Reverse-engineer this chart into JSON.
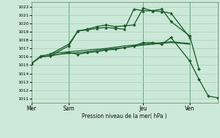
{
  "title": "Pression niveau de la mer( hPa )",
  "ylim": [
    1010.5,
    1022.5
  ],
  "y_ticks": [
    1011,
    1012,
    1013,
    1014,
    1015,
    1016,
    1017,
    1018,
    1019,
    1020,
    1021,
    1022
  ],
  "background_color": "#cce8d8",
  "grid_color": "#99ccaa",
  "line_color": "#1a5c2a",
  "day_labels": [
    "Mer",
    "Sam",
    "Jeu",
    "Ven"
  ],
  "day_positions": [
    0,
    4,
    12,
    17
  ],
  "xlim": [
    0,
    20
  ],
  "lines": [
    {
      "x": [
        0,
        1,
        2,
        4,
        5,
        6,
        7,
        8,
        9,
        10,
        11,
        12,
        13,
        14,
        15,
        17,
        18
      ],
      "y": [
        1015.2,
        1016.0,
        1016.1,
        1017.3,
        1019.1,
        1019.3,
        1019.6,
        1019.8,
        1019.6,
        1019.7,
        1019.8,
        1021.8,
        1021.5,
        1021.7,
        1020.2,
        1018.5,
        1014.5
      ],
      "marker": "D",
      "markersize": 2.0,
      "linewidth": 1.0
    },
    {
      "x": [
        0,
        1,
        2,
        4,
        5,
        6,
        7,
        8,
        9,
        10,
        11,
        12,
        13,
        14,
        15,
        17,
        18,
        19,
        20
      ],
      "y": [
        1015.2,
        1016.0,
        1016.1,
        1016.5,
        1016.3,
        1016.5,
        1016.6,
        1016.8,
        1016.9,
        1017.1,
        1017.3,
        1017.7,
        1017.7,
        1017.5,
        1018.3,
        1015.5,
        1013.3,
        1011.3,
        1011.1
      ],
      "marker": "D",
      "markersize": 2.0,
      "linewidth": 1.0
    },
    {
      "x": [
        2,
        4,
        6,
        8,
        10,
        12,
        14,
        15,
        17
      ],
      "y": [
        1016.2,
        1016.4,
        1016.6,
        1016.9,
        1017.1,
        1017.4,
        1017.6,
        1017.7,
        1017.5
      ],
      "marker": null,
      "markersize": 0,
      "linewidth": 0.9
    },
    {
      "x": [
        2,
        4,
        6,
        8,
        10,
        12,
        14,
        15,
        17
      ],
      "y": [
        1016.4,
        1016.6,
        1016.8,
        1017.0,
        1017.3,
        1017.5,
        1017.7,
        1017.8,
        1017.6
      ],
      "marker": null,
      "markersize": 0,
      "linewidth": 0.9
    },
    {
      "x": [
        0,
        1,
        2,
        4,
        5,
        6,
        7,
        8,
        9,
        10,
        11,
        12,
        13,
        14,
        15,
        17
      ],
      "y": [
        1015.2,
        1016.1,
        1016.3,
        1017.5,
        1019.1,
        1019.2,
        1019.4,
        1019.5,
        1019.4,
        1019.3,
        1021.7,
        1021.5,
        1021.5,
        1021.4,
        1021.2,
        1018.3
      ],
      "marker": "^",
      "markersize": 2.5,
      "linewidth": 1.0
    }
  ],
  "vline_positions": [
    4,
    12,
    17
  ],
  "vline_color": "#336644",
  "figsize": [
    3.2,
    2.0
  ],
  "dpi": 100
}
